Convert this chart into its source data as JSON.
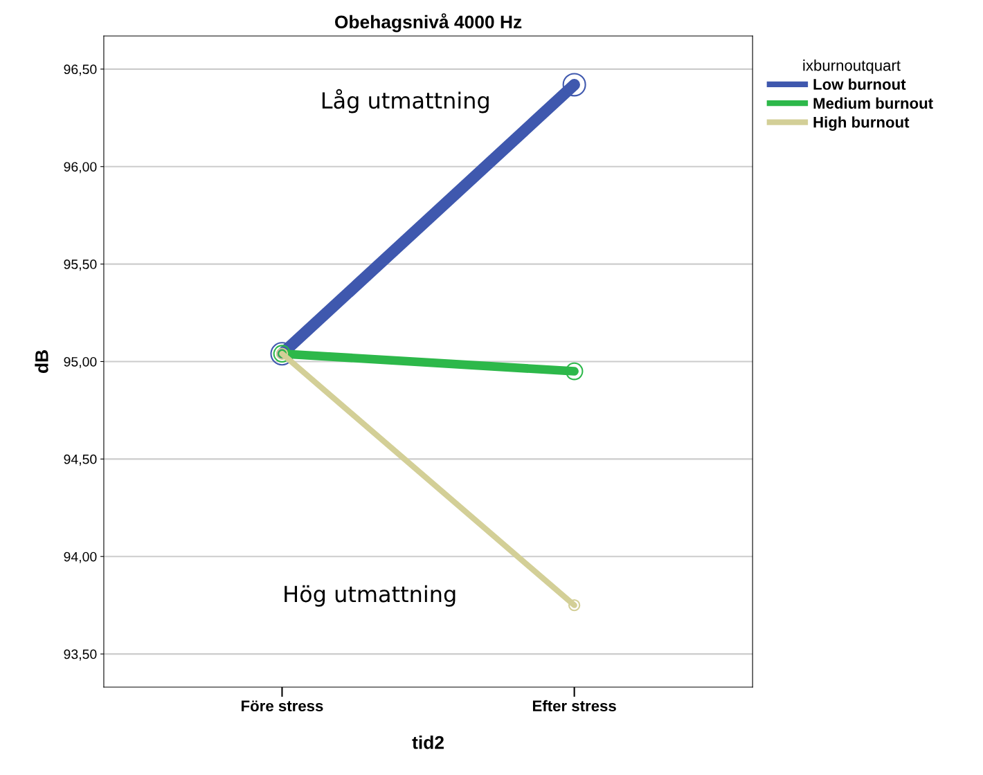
{
  "chart_data": {
    "type": "line",
    "title": "Obehagsnivå 4000 Hz",
    "xlabel": "tid2",
    "ylabel": "dB",
    "legend_title": "ixburnoutquart",
    "categories": [
      "Före stress",
      "Efter stress"
    ],
    "series": [
      {
        "name": "Low burnout",
        "color": "#3f58ae",
        "values": [
          95.04,
          96.42
        ]
      },
      {
        "name": "Medium burnout",
        "color": "#2db84a",
        "values": [
          95.04,
          94.95
        ]
      },
      {
        "name": "High burnout",
        "color": "#d3cf97",
        "values": [
          95.04,
          93.75
        ]
      }
    ],
    "ylim": [
      93.33,
      96.67
    ],
    "yticks": [
      {
        "value": 93.5,
        "label": "93,50"
      },
      {
        "value": 94.0,
        "label": "94,00"
      },
      {
        "value": 94.5,
        "label": "94,50"
      },
      {
        "value": 95.0,
        "label": "95,00"
      },
      {
        "value": 95.5,
        "label": "95,50"
      },
      {
        "value": 96.0,
        "label": "96,00"
      },
      {
        "value": 96.5,
        "label": "96,50"
      }
    ],
    "annotations": [
      "Låg utmattning",
      "Hög utmattning"
    ],
    "grid": "y",
    "legend": "top right",
    "marker": "circle",
    "line_style": "solid"
  }
}
